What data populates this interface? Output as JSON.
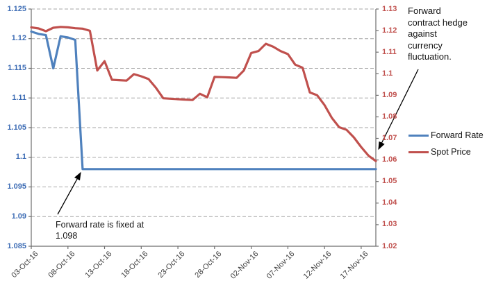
{
  "chart_data": {
    "type": "line",
    "x": [
      "03-Oct-16",
      "04-Oct-16",
      "05-Oct-16",
      "06-Oct-16",
      "07-Oct-16",
      "08-Oct-16",
      "09-Oct-16",
      "10-Oct-16",
      "11-Oct-16",
      "12-Oct-16",
      "13-Oct-16",
      "14-Oct-16",
      "15-Oct-16",
      "16-Oct-16",
      "17-Oct-16",
      "18-Oct-16",
      "19-Oct-16",
      "20-Oct-16",
      "21-Oct-16",
      "22-Oct-16",
      "23-Oct-16",
      "24-Oct-16",
      "25-Oct-16",
      "26-Oct-16",
      "27-Oct-16",
      "28-Oct-16",
      "29-Oct-16",
      "30-Oct-16",
      "31-Oct-16",
      "01-Nov-16",
      "02-Nov-16",
      "03-Nov-16",
      "04-Nov-16",
      "05-Nov-16",
      "06-Nov-16",
      "07-Nov-16",
      "08-Nov-16",
      "09-Nov-16",
      "10-Nov-16",
      "11-Nov-16",
      "12-Nov-16",
      "13-Nov-16",
      "14-Nov-16",
      "15-Nov-16",
      "16-Nov-16",
      "17-Nov-16",
      "18-Nov-16",
      "19-Nov-16"
    ],
    "series": [
      {
        "name": "Forward Rate",
        "axis": "left",
        "color": "#4F81BD",
        "values": [
          1.1212,
          1.1208,
          1.1206,
          1.115,
          1.1204,
          1.1202,
          1.1198,
          1.098,
          1.098,
          1.098,
          1.098,
          1.098,
          1.098,
          1.098,
          1.098,
          1.098,
          1.098,
          1.098,
          1.098,
          1.098,
          1.098,
          1.098,
          1.098,
          1.098,
          1.098,
          1.098,
          1.098,
          1.098,
          1.098,
          1.098,
          1.098,
          1.098,
          1.098,
          1.098,
          1.098,
          1.098,
          1.098,
          1.098,
          1.098,
          1.098,
          1.098,
          1.098,
          1.098,
          1.098,
          1.098,
          1.098,
          1.098,
          1.098
        ]
      },
      {
        "name": "Spot Price",
        "axis": "right",
        "color": "#C0504D",
        "values": [
          1.1215,
          1.121,
          1.1197,
          1.1213,
          1.1217,
          1.1215,
          1.1211,
          1.1209,
          1.1199,
          1.1015,
          1.1058,
          1.0972,
          1.097,
          1.0968,
          1.0998,
          1.0988,
          1.0975,
          1.0935,
          1.0886,
          1.0884,
          1.0882,
          1.088,
          1.0878,
          1.0907,
          1.0891,
          1.0985,
          1.0984,
          1.0983,
          1.0981,
          1.1015,
          1.1096,
          1.1105,
          1.1139,
          1.1125,
          1.1105,
          1.1091,
          1.1042,
          1.1028,
          1.0913,
          1.09,
          1.0855,
          1.0795,
          1.0752,
          1.074,
          1.0705,
          1.066,
          1.062,
          1.0595
        ]
      }
    ],
    "left_axis": {
      "min": 1.085,
      "max": 1.125,
      "step": 0.005,
      "color": "#3E6DB5",
      "labels": [
        "1.125",
        "1.12",
        "1.115",
        "1.11",
        "1.105",
        "1.1",
        "1.095",
        "1.09",
        "1.085"
      ]
    },
    "right_axis": {
      "min": 1.02,
      "max": 1.13,
      "step": 0.01,
      "color": "#C0504D",
      "labels": [
        "1.13",
        "1.12",
        "1.11",
        "1.1",
        "1.09",
        "1.08",
        "1.07",
        "1.06",
        "1.05",
        "1.04",
        "1.03",
        "1.02"
      ]
    },
    "x_axis": {
      "tick_days": [
        0,
        5,
        10,
        15,
        20,
        25,
        30,
        35,
        40,
        45
      ],
      "tick_labels": [
        "03-Oct-16",
        "08-Oct-16",
        "13-Oct-16",
        "18-Oct-16",
        "23-Oct-16",
        "28-Oct-16",
        "02-Nov-16",
        "07-Nov-16",
        "12-Nov-16",
        "17-Nov-16"
      ]
    },
    "grid": {
      "horizontal_dashed": true,
      "color": "#A6A6A6"
    },
    "legend_position": "right"
  },
  "annotations": {
    "fixed_rate_note": "Forward rate is fixed at\n1.098",
    "hedge_note": "Forward\ncontract hedge\nagainst\ncurrency\nfluctuation."
  },
  "legend": {
    "forward_label": "Forward Rate",
    "spot_label": "Spot Price"
  },
  "colors": {
    "forward_line": "#4F81BD",
    "spot_line": "#C0504D",
    "axis_line": "#6e6e6e",
    "gridline": "#A6A6A6",
    "x_label_text": "#3f3f3f",
    "annotation_arrow": "#000000"
  }
}
